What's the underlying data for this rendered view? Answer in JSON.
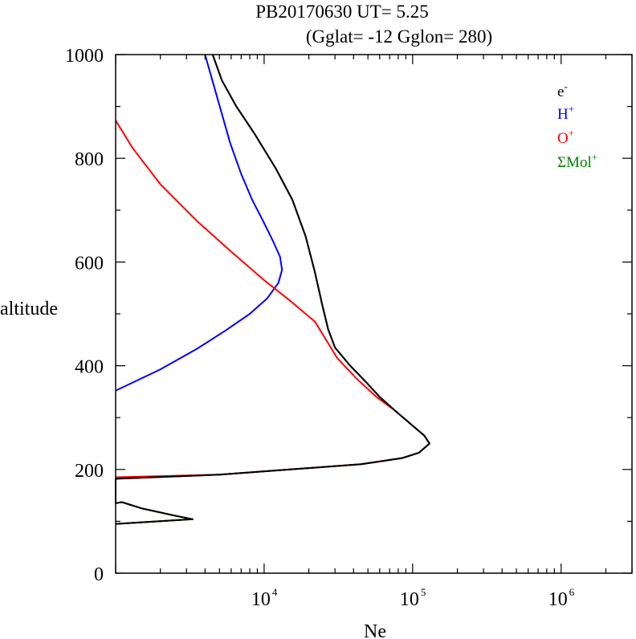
{
  "title": {
    "line1": "PB20170630   UT=  5.25",
    "line2": "(Gglat= -12   Gglon=  280)"
  },
  "chart_data": {
    "type": "line",
    "xlabel": "Ne",
    "ylabel": "altitude",
    "xscale": "log",
    "xlim": [
      1000,
      3000000
    ],
    "ylim": [
      0,
      1000
    ],
    "yticks": [
      0,
      200,
      400,
      600,
      800,
      1000
    ],
    "xticks": [
      {
        "value": 10000,
        "base": "10",
        "exp": "4"
      },
      {
        "value": 100000,
        "base": "10",
        "exp": "5"
      },
      {
        "value": 1000000,
        "base": "10",
        "exp": "6"
      }
    ],
    "legend_position": "top-right",
    "series": [
      {
        "name": "e",
        "sup": "-",
        "color": "#000000",
        "points": [
          [
            1000,
            95
          ],
          [
            3300,
            104
          ],
          [
            2500,
            111
          ],
          [
            1500,
            125
          ],
          [
            1100,
            137
          ],
          [
            1000,
            135
          ],
          [
            1000,
            182
          ],
          [
            5000,
            190
          ],
          [
            15000,
            200
          ],
          [
            45000,
            210
          ],
          [
            85000,
            222
          ],
          [
            110000,
            232
          ],
          [
            130000,
            250
          ],
          [
            120000,
            265
          ],
          [
            95000,
            290
          ],
          [
            75000,
            315
          ],
          [
            60000,
            340
          ],
          [
            48000,
            370
          ],
          [
            38000,
            400
          ],
          [
            30000,
            435
          ],
          [
            27000,
            470
          ],
          [
            24500,
            520
          ],
          [
            22000,
            580
          ],
          [
            19000,
            650
          ],
          [
            15500,
            720
          ],
          [
            12000,
            780
          ],
          [
            8500,
            850
          ],
          [
            6500,
            900
          ],
          [
            5200,
            950
          ],
          [
            4500,
            1000
          ]
        ]
      },
      {
        "name": "H",
        "sup": "+",
        "color": "#0000ff",
        "points": [
          [
            1000,
            352
          ],
          [
            2000,
            393
          ],
          [
            3500,
            432
          ],
          [
            5500,
            468
          ],
          [
            8000,
            500
          ],
          [
            10500,
            530
          ],
          [
            12500,
            560
          ],
          [
            13200,
            585
          ],
          [
            12800,
            610
          ],
          [
            11500,
            640
          ],
          [
            9800,
            680
          ],
          [
            8300,
            720
          ],
          [
            7000,
            770
          ],
          [
            5900,
            830
          ],
          [
            4800,
            920
          ],
          [
            4000,
            1000
          ]
        ]
      },
      {
        "name": "O",
        "sup": "+",
        "color": "#ff0000",
        "points": [
          [
            1000,
            185
          ],
          [
            5000,
            190
          ],
          [
            15000,
            200
          ],
          [
            45000,
            210
          ],
          [
            85000,
            222
          ],
          [
            110000,
            232
          ],
          [
            130000,
            250
          ],
          [
            120000,
            265
          ],
          [
            95000,
            290
          ],
          [
            75000,
            315
          ],
          [
            57000,
            340
          ],
          [
            42000,
            375
          ],
          [
            31000,
            415
          ],
          [
            22000,
            485
          ],
          [
            15000,
            525
          ],
          [
            10000,
            565
          ],
          [
            6000,
            620
          ],
          [
            3500,
            680
          ],
          [
            2000,
            750
          ],
          [
            1300,
            820
          ],
          [
            1000,
            873
          ]
        ]
      },
      {
        "name": "ΣMol",
        "sup": "+",
        "color": "#008000",
        "points": [
          [
            1000,
            95
          ],
          [
            3300,
            104
          ],
          [
            2500,
            111
          ],
          [
            1500,
            125
          ],
          [
            1100,
            137
          ],
          [
            1000,
            135
          ]
        ]
      }
    ]
  }
}
